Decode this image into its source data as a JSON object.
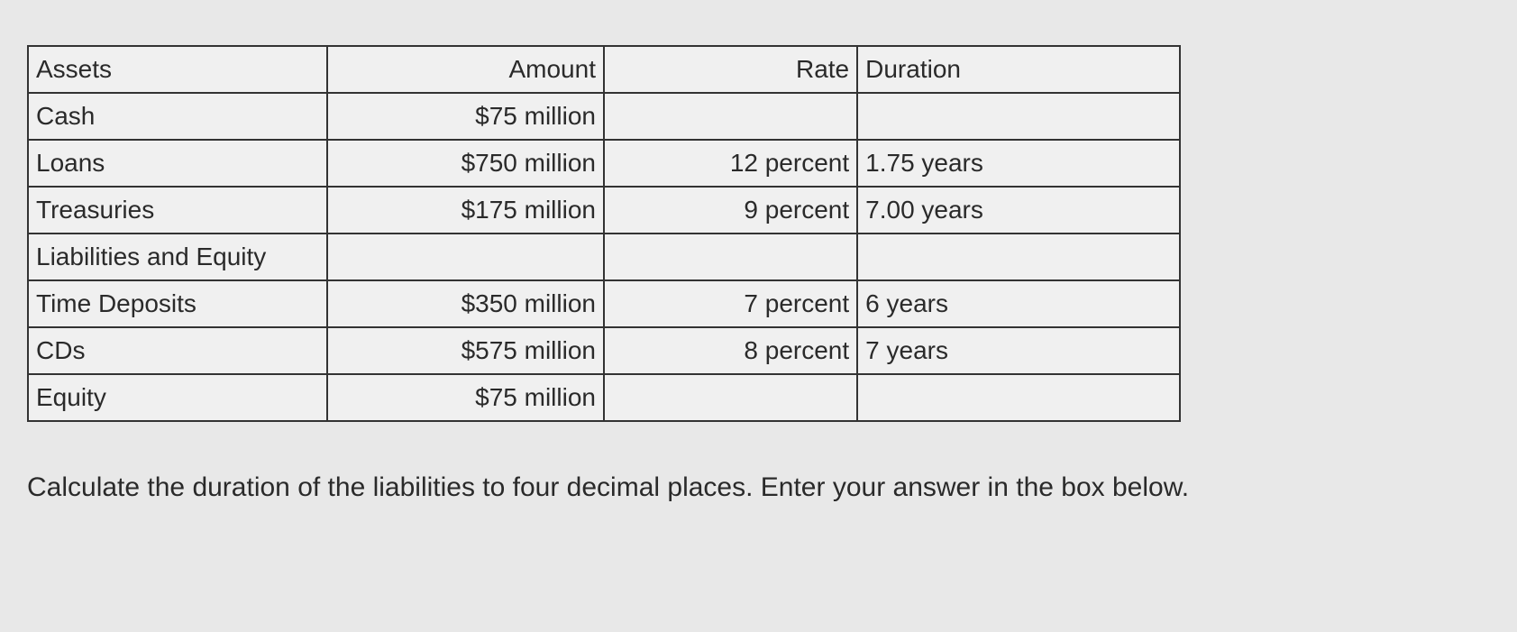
{
  "table": {
    "headers": {
      "col1": "Assets",
      "col2": "Amount",
      "col3": "Rate",
      "col4": "Duration"
    },
    "rows": [
      {
        "label": "Cash",
        "amount": "$75 million",
        "rate": "",
        "duration": ""
      },
      {
        "label": "Loans",
        "amount": "$750 million",
        "rate": "12 percent",
        "duration": "1.75 years"
      },
      {
        "label": "Treasuries",
        "amount": "$175 million",
        "rate": "9 percent",
        "duration": "7.00 years"
      },
      {
        "label": "Liabilities and Equity",
        "amount": "",
        "rate": "",
        "duration": ""
      },
      {
        "label": "Time Deposits",
        "amount": "$350 million",
        "rate": "7 percent",
        "duration": "6 years"
      },
      {
        "label": "CDs",
        "amount": "$575 million",
        "rate": "8 percent",
        "duration": "7 years"
      },
      {
        "label": "Equity",
        "amount": "$75 million",
        "rate": "",
        "duration": ""
      }
    ]
  },
  "question": "Calculate the duration of the liabilities to four decimal places. Enter your answer in the box below.",
  "styling": {
    "background_color": "#e8e8e8",
    "table_background": "#f0f0f0",
    "border_color": "#333333",
    "text_color": "#2a2a2a",
    "font_size_table": 28,
    "font_size_question": 30,
    "border_width": 2
  }
}
